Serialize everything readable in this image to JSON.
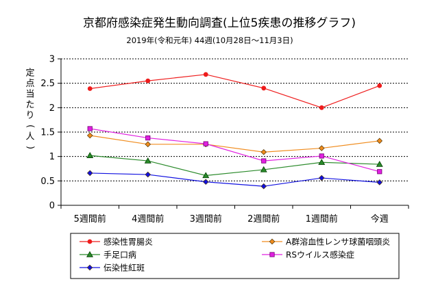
{
  "chart_data": {
    "type": "line",
    "title": "京都府感染症発生動向調査(上位5疾患の推移グラフ)",
    "subtitle": "2019年(令和元年) 44週(10月28日～11月3日)",
    "ylabel": "定点当たり(人)",
    "xlabel": "",
    "ylim": [
      0,
      3
    ],
    "yticks": [
      "0",
      "0.5",
      "1",
      "1.5",
      "2",
      "2.5",
      "3"
    ],
    "grid": true,
    "legend_position": "bottom",
    "categories": [
      "5週間前",
      "4週間前",
      "3週間前",
      "2週間前",
      "1週間前",
      "今週"
    ],
    "series": [
      {
        "name": "感染性胃腸炎",
        "color": "#ee1c1c",
        "marker": "circle",
        "values": [
          2.39,
          2.55,
          2.68,
          2.4,
          2.0,
          2.45
        ]
      },
      {
        "name": "A群溶血性レンサ球菌咽頭炎",
        "color": "#f08c1e",
        "marker": "diamond",
        "values": [
          1.43,
          1.25,
          1.25,
          1.09,
          1.17,
          1.32
        ]
      },
      {
        "name": "手足口病",
        "color": "#2a8a2a",
        "marker": "triangle",
        "values": [
          1.02,
          0.91,
          0.61,
          0.73,
          0.88,
          0.84
        ]
      },
      {
        "name": "RSウイルス感染症",
        "color": "#e020e0",
        "marker": "square",
        "values": [
          1.57,
          1.38,
          1.26,
          0.91,
          1.01,
          0.69
        ]
      },
      {
        "name": "伝染性紅斑",
        "color": "#1010e0",
        "marker": "diamond",
        "values": [
          0.66,
          0.63,
          0.48,
          0.39,
          0.56,
          0.47
        ]
      }
    ]
  }
}
